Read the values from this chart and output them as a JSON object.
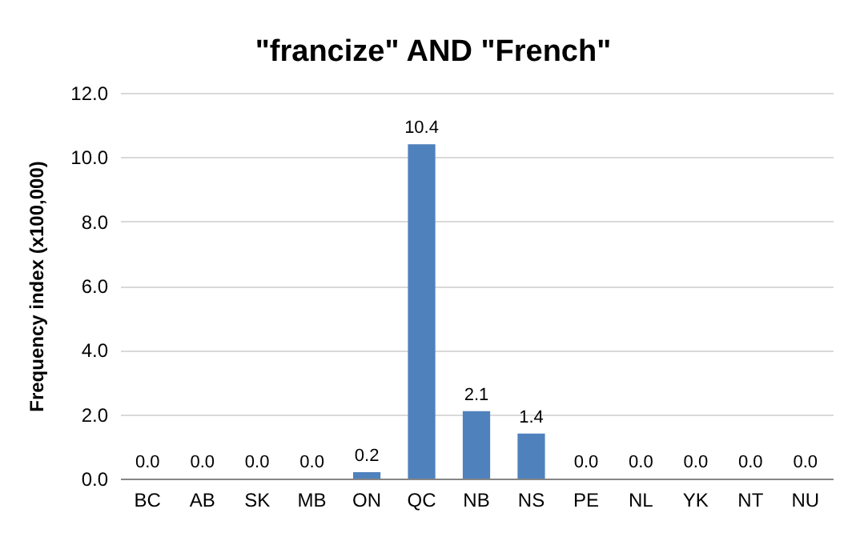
{
  "chart_data": {
    "type": "bar",
    "title": "\"francize\" AND \"French\"",
    "ylabel": "Frequency index (x100,000)",
    "categories": [
      "BC",
      "AB",
      "SK",
      "MB",
      "ON",
      "QC",
      "NB",
      "NS",
      "PE",
      "NL",
      "YK",
      "NT",
      "NU"
    ],
    "values": [
      0,
      0,
      0,
      0,
      0.2,
      10.4,
      2.1,
      1.4,
      0,
      0,
      0,
      0,
      0
    ],
    "value_labels": [
      "0.0",
      "0.0",
      "0.0",
      "0.0",
      "0.2",
      "10.4",
      "2.1",
      "1.4",
      "0.0",
      "0.0",
      "0.0",
      "0.0",
      "0.0"
    ],
    "color": "#4f81bd",
    "ylim": [
      0,
      12
    ],
    "yticks": [
      {
        "value": 0,
        "label": "0.0"
      },
      {
        "value": 2,
        "label": "2.0"
      },
      {
        "value": 4,
        "label": "4.0"
      },
      {
        "value": 6,
        "label": "6.0"
      },
      {
        "value": 8,
        "label": "8.0"
      },
      {
        "value": 10,
        "label": "10.0"
      },
      {
        "value": 12,
        "label": "12.0"
      }
    ],
    "grid": "y"
  }
}
